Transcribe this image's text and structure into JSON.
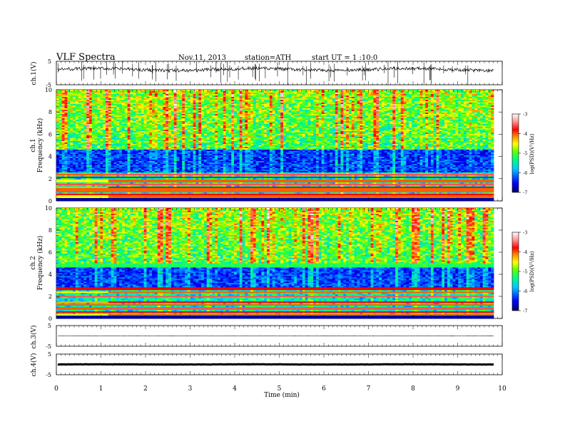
{
  "header": {
    "title": "VLF  Spectra",
    "date": "Nov.11, 2013",
    "station": "station=ATH",
    "start": "start  UT  =   1  :10:0"
  },
  "chart_data": [
    {
      "type": "line",
      "panel": "ch1-waveform",
      "ylabel": "ch.1(V)",
      "ylim": [
        -5,
        5
      ],
      "y_ticks": [
        "5",
        "-5"
      ],
      "xlim": [
        0,
        10
      ],
      "baseline": 1.5,
      "color": "#000000"
    },
    {
      "type": "heatmap",
      "panel": "ch1-spectrogram",
      "ylabel": [
        "ch.1",
        "Frequency  (kHz)"
      ],
      "ylim": [
        0,
        10
      ],
      "y_ticks": [
        "0",
        "2",
        "4",
        "6",
        "8",
        "10"
      ],
      "xlim": [
        0,
        9.8
      ],
      "colorbar": {
        "label": "log(PSD)(V²/Hz)",
        "range": [
          -7,
          -3
        ],
        "ticks": [
          "-3",
          "-4",
          "-5",
          "-6",
          "-7"
        ]
      },
      "description_bands_khz": [
        [
          0,
          2.5,
          "bright line tones"
        ],
        [
          2.5,
          4.5,
          "dark blue -6.5"
        ],
        [
          4.5,
          10,
          "noisy cyan-yellow -4.5 to -5"
        ]
      ],
      "tone_bands_khz": [
        0.4,
        0.6,
        0.8,
        1.0,
        1.2,
        1.5,
        1.8,
        2.1,
        2.4
      ],
      "step_change_min": 1.15
    },
    {
      "type": "heatmap",
      "panel": "ch2-spectrogram",
      "ylabel": [
        "ch.2",
        "Frequency  (kHz)"
      ],
      "ylim": [
        0,
        10
      ],
      "y_ticks": [
        "0",
        "2",
        "4",
        "6",
        "8",
        "10"
      ],
      "xlim": [
        0,
        9.8
      ],
      "colorbar": {
        "label": "log(PSD)(V²/Hz)",
        "range": [
          -7,
          -3
        ],
        "ticks": [
          "-3",
          "-4",
          "-5",
          "-6",
          "-7"
        ]
      },
      "tone_bands_khz": [
        0.3,
        0.6,
        0.9,
        1.2,
        1.5,
        2.0,
        2.4,
        2.7
      ],
      "step_change_min": 1.15
    },
    {
      "type": "line",
      "panel": "ch3-waveform",
      "ylabel": "ch.3(V)",
      "ylim": [
        -5,
        5
      ],
      "y_ticks": [
        "5",
        "-5"
      ],
      "xlim": [
        0,
        9.8
      ],
      "baseline": 0
    },
    {
      "type": "line",
      "panel": "ch4-waveform",
      "ylabel": "ch.4(V)",
      "ylim": [
        -5,
        5
      ],
      "y_ticks": [
        "5",
        "-5"
      ],
      "xlim": [
        0,
        9.8
      ],
      "baseline": 0
    }
  ],
  "xaxis": {
    "label": "Time  (min)",
    "ticks": [
      "0",
      "1",
      "2",
      "3",
      "4",
      "5",
      "6",
      "7",
      "8",
      "9",
      "10"
    ],
    "range": [
      0,
      10
    ]
  },
  "colors": {
    "colormap": [
      "#000080",
      "#0000ff",
      "#0060ff",
      "#00c0ff",
      "#00ffc0",
      "#40ff40",
      "#c0ff00",
      "#ffff00",
      "#ffa000",
      "#ff2000",
      "#ff8080",
      "#ffffff"
    ]
  }
}
